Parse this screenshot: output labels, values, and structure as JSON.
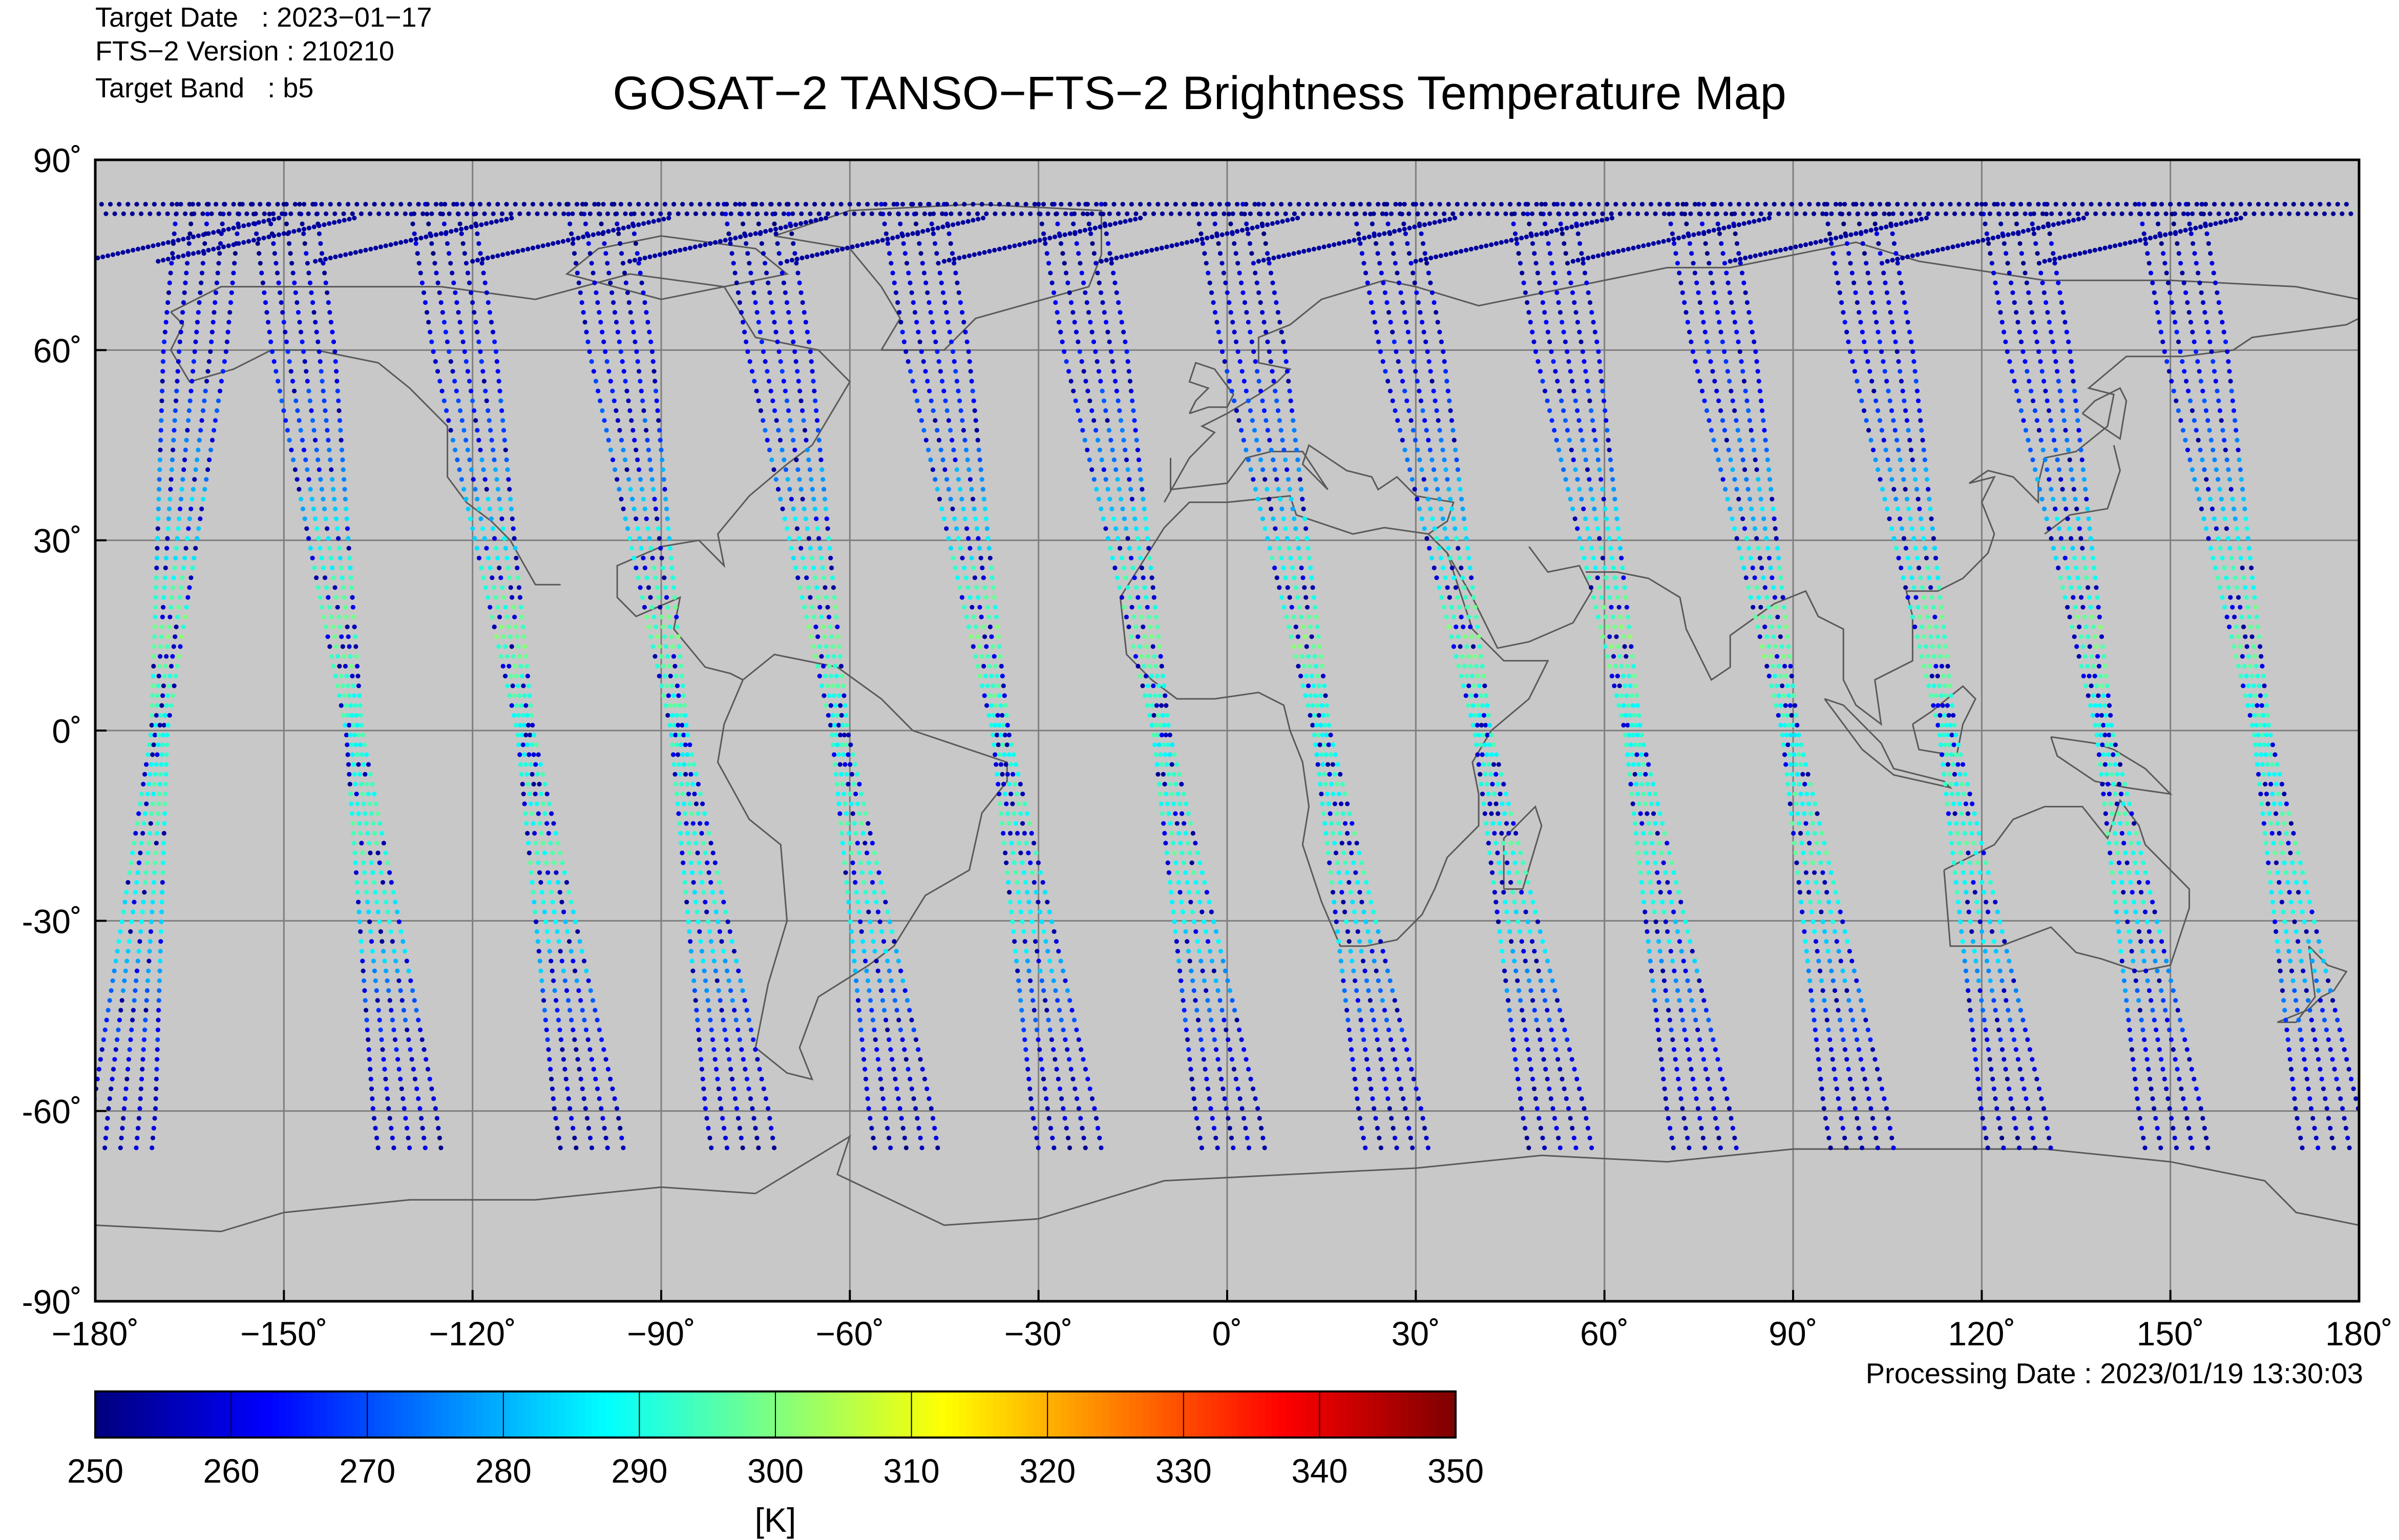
{
  "header": {
    "target_date": "Target Date   : 2023−01−17",
    "version": "FTS−2 Version : 210210",
    "band": "Target Band   : b5"
  },
  "title": "GOSAT−2 TANSO−FTS−2 Brightness Temperature Map",
  "processing_date": "Processing Date : 2023/01/19 13:30:03",
  "colors": {
    "background": "#c8c8c8",
    "grid": "#7f7f7f",
    "coast": "#5a5a5a",
    "cold": "#0000d8",
    "warm": "#ffff00",
    "hot": "#a00000"
  },
  "chart_data": {
    "type": "scatter",
    "subtype": "geographic swath map (equirectangular)",
    "title": "GOSAT−2 TANSO−FTS−2 Brightness Temperature Map",
    "xlim": [
      -180,
      180
    ],
    "ylim": [
      -90,
      90
    ],
    "x_ticks": [
      -180,
      -150,
      -120,
      -90,
      -60,
      -30,
      0,
      30,
      60,
      90,
      120,
      150,
      180
    ],
    "x_tick_labels": [
      "−180˚",
      "−150˚",
      "−120˚",
      "−90˚",
      "−60˚",
      "−30˚",
      "0˚",
      "30˚",
      "60˚",
      "90˚",
      "120˚",
      "150˚",
      "180˚"
    ],
    "y_ticks": [
      90,
      60,
      30,
      0,
      -30,
      -60,
      -90
    ],
    "y_tick_labels": [
      "90˚",
      "60˚",
      "30˚",
      "0˚",
      "-30˚",
      "-60˚",
      "-90˚"
    ],
    "grid": true,
    "colorbar": {
      "range": [
        250,
        350
      ],
      "tick_values": [
        250,
        260,
        270,
        280,
        290,
        300,
        310,
        320,
        330,
        340,
        350
      ],
      "tick_labels": [
        "250",
        "260",
        "270",
        "280",
        "290",
        "300",
        "310",
        "320",
        "330",
        "340",
        "350"
      ],
      "unit_label": "[K]",
      "colormap": "jet"
    },
    "orbit_swaths": [
      {
        "lon_north": -162,
        "lon_south": -176
      },
      {
        "lon_north": -150,
        "lon_south": -130
      },
      {
        "lon_north": -125,
        "lon_south": -101
      },
      {
        "lon_north": -100,
        "lon_south": -77
      },
      {
        "lon_north": -75,
        "lon_south": -51
      },
      {
        "lon_north": -50,
        "lon_south": -25
      },
      {
        "lon_north": -25,
        "lon_south": 1
      },
      {
        "lon_north": 0,
        "lon_south": 27
      },
      {
        "lon_north": 25,
        "lon_south": 53
      },
      {
        "lon_north": 50,
        "lon_south": 76
      },
      {
        "lon_north": 75,
        "lon_south": 101
      },
      {
        "lon_north": 100,
        "lon_south": 126
      },
      {
        "lon_north": 125,
        "lon_south": 151
      },
      {
        "lon_north": 150,
        "lon_south": 176
      }
    ],
    "latitude_temperature_profile_K": [
      {
        "lat": 80,
        "value": 252
      },
      {
        "lat": 60,
        "value": 262
      },
      {
        "lat": 45,
        "value": 272
      },
      {
        "lat": 30,
        "value": 287
      },
      {
        "lat": 15,
        "value": 297
      },
      {
        "lat": 0,
        "value": 290
      },
      {
        "lat": -20,
        "value": 293
      },
      {
        "lat": -35,
        "value": 283
      },
      {
        "lat": -50,
        "value": 262
      },
      {
        "lat": -65,
        "value": 255
      }
    ]
  }
}
